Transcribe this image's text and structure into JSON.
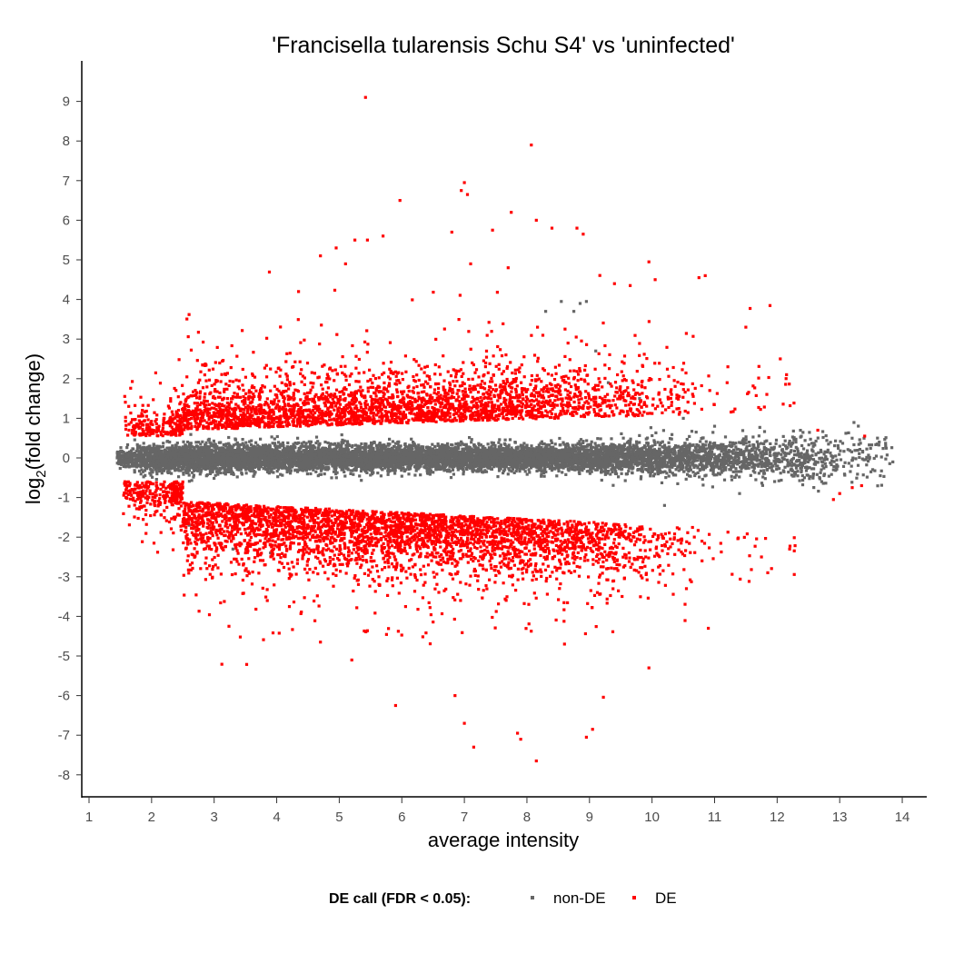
{
  "chart_data": {
    "type": "scatter",
    "title": "'Francisella tularensis Schu S4' vs 'uninfected'",
    "xlabel": "average intensity",
    "ylabel_main": "log",
    "ylabel_sub": "2",
    "ylabel_rest": "(fold change)",
    "xlim": [
      0.9,
      14.4
    ],
    "ylim": [
      -8.5,
      9.9
    ],
    "x_ticks": [
      "1",
      "2",
      "3",
      "4",
      "5",
      "6",
      "7",
      "8",
      "9",
      "10",
      "11",
      "12",
      "13",
      "14"
    ],
    "y_ticks": [
      "9",
      "8",
      "7",
      "6",
      "5",
      "4",
      "3",
      "2",
      "1",
      "0",
      "-1",
      "-2",
      "-3",
      "-4",
      "-5",
      "-6",
      "-7",
      "-8"
    ],
    "grid": false,
    "legend": {
      "position": "bottom",
      "title": "DE call (FDR < 0.05):",
      "entries": [
        {
          "label": "non-DE",
          "color": "#666666"
        },
        {
          "label": "DE",
          "color": "#ff0000"
        }
      ]
    },
    "series": [
      {
        "name": "DE",
        "color": "#ff0000",
        "points": [
          [
            5.42,
            9.1
          ],
          [
            8.07,
            7.9
          ],
          [
            7.0,
            6.95
          ],
          [
            6.95,
            6.75
          ],
          [
            7.05,
            6.65
          ],
          [
            5.97,
            6.5
          ],
          [
            7.75,
            6.2
          ],
          [
            7.45,
            5.75
          ],
          [
            6.8,
            5.7
          ],
          [
            8.15,
            6.0
          ],
          [
            8.4,
            5.8
          ],
          [
            8.8,
            5.8
          ],
          [
            8.9,
            5.65
          ],
          [
            5.45,
            5.5
          ],
          [
            5.25,
            5.5
          ],
          [
            5.7,
            5.6
          ],
          [
            4.7,
            5.1
          ],
          [
            5.1,
            4.9
          ],
          [
            4.95,
            5.3
          ],
          [
            7.1,
            4.9
          ],
          [
            7.7,
            4.8
          ],
          [
            9.95,
            4.95
          ],
          [
            10.05,
            4.5
          ],
          [
            10.75,
            4.55
          ],
          [
            10.85,
            4.6
          ],
          [
            9.4,
            4.4
          ],
          [
            9.65,
            4.35
          ],
          [
            4.35,
            4.2
          ],
          [
            11.5,
            3.3
          ],
          [
            12.05,
            2.5
          ],
          [
            12.15,
            2.1
          ],
          [
            11.2,
            1.9
          ],
          [
            12.65,
            0.7
          ],
          [
            13.4,
            0.55
          ],
          [
            13.2,
            -0.75
          ],
          [
            13.35,
            -0.7
          ],
          [
            13.0,
            -0.9
          ],
          [
            12.9,
            -1.05
          ],
          [
            12.2,
            -2.3
          ],
          [
            11.75,
            -2.5
          ],
          [
            11.85,
            -2.9
          ],
          [
            10.9,
            -4.3
          ],
          [
            10.55,
            -3.3
          ],
          [
            9.95,
            -5.3
          ],
          [
            8.15,
            -7.65
          ],
          [
            7.15,
            -7.3
          ],
          [
            7.0,
            -6.7
          ],
          [
            7.85,
            -6.95
          ],
          [
            7.9,
            -7.1
          ],
          [
            9.05,
            -6.85
          ],
          [
            8.95,
            -7.05
          ],
          [
            5.9,
            -6.25
          ],
          [
            6.85,
            -6.0
          ],
          [
            4.7,
            -4.65
          ],
          [
            5.2,
            -5.1
          ],
          [
            3.85,
            -3.6
          ],
          [
            8.6,
            -4.7
          ]
        ]
      }
    ]
  }
}
